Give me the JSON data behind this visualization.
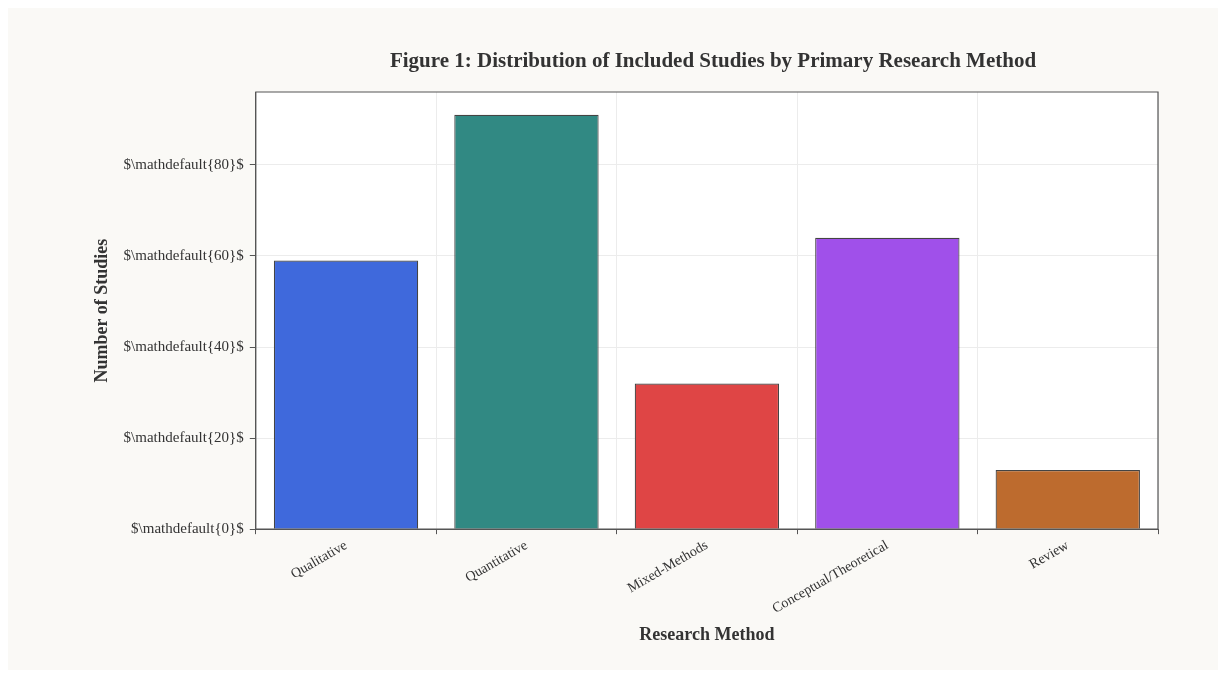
{
  "chart_data": {
    "type": "bar",
    "title": "Figure 1: Distribution of Included Studies by Primary Research Method",
    "xlabel": "Research Method",
    "ylabel": "Number of Studies",
    "categories": [
      "Qualitative",
      "Quantitative",
      "Mixed-Methods",
      "Conceptual/Theoretical",
      "Review"
    ],
    "values": [
      59,
      91,
      32,
      64,
      13
    ],
    "colors": [
      "#3f69dc",
      "#318983",
      "#df4545",
      "#a050ea",
      "#bd6b2e"
    ],
    "ylim": [
      0,
      96
    ],
    "yticks": [
      {
        "value": 0,
        "label": "$\\mathdefault{0}$"
      },
      {
        "value": 20,
        "label": "$\\mathdefault{20}$"
      },
      {
        "value": 40,
        "label": "$\\mathdefault{40}$"
      },
      {
        "value": 60,
        "label": "$\\mathdefault{60}$"
      },
      {
        "value": 80,
        "label": "$\\mathdefault{80}$"
      }
    ],
    "grid": true
  }
}
